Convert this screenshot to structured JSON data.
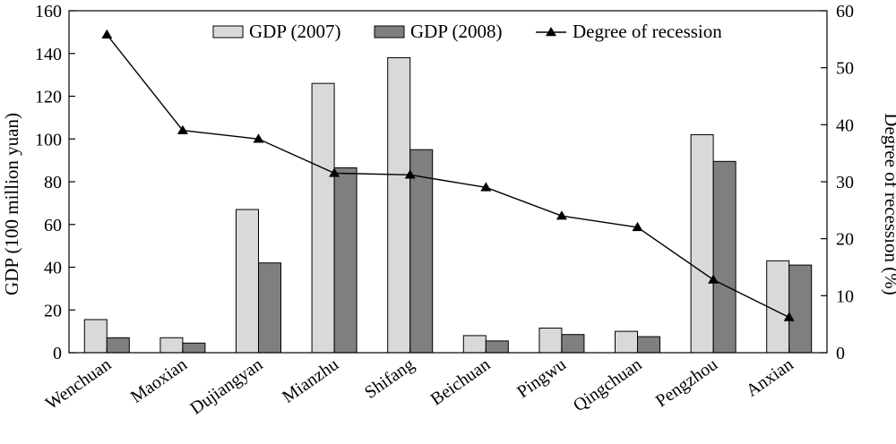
{
  "chart_data": {
    "type": "bar",
    "categories": [
      "Wenchuan",
      "Maoxian",
      "Dujiangyan",
      "Mianzhu",
      "Shifang",
      "Beichuan",
      "Pingwu",
      "Qingchuan",
      "Pengzhou",
      "Anxian"
    ],
    "series": [
      {
        "name": "GDP (2007)",
        "type": "bar",
        "axis": "left",
        "color": "#d9d9d9",
        "values": [
          15.5,
          7,
          67,
          126,
          138,
          8,
          11.5,
          10,
          102,
          43
        ]
      },
      {
        "name": "GDP (2008)",
        "type": "bar",
        "axis": "left",
        "color": "#7f7f7f",
        "values": [
          7,
          4.5,
          42,
          86.5,
          95,
          5.5,
          8.5,
          7.5,
          89.5,
          41
        ]
      },
      {
        "name": "Degree of recession",
        "type": "line",
        "axis": "right",
        "marker": "triangle",
        "color": "#000000",
        "values": [
          55.8,
          39,
          37.5,
          31.5,
          31.2,
          29,
          24,
          22,
          12.8,
          6.2
        ]
      }
    ],
    "ylabel": "GDP (100 million yuan)",
    "y2label": "Degree of recession (%)",
    "ylim": [
      0,
      160
    ],
    "y2lim": [
      0,
      60
    ],
    "yticks": [
      0,
      20,
      40,
      60,
      80,
      100,
      120,
      140,
      160
    ],
    "y2ticks": [
      0,
      10,
      20,
      30,
      40,
      50,
      60
    ],
    "grid": false,
    "legend": "top-center"
  }
}
